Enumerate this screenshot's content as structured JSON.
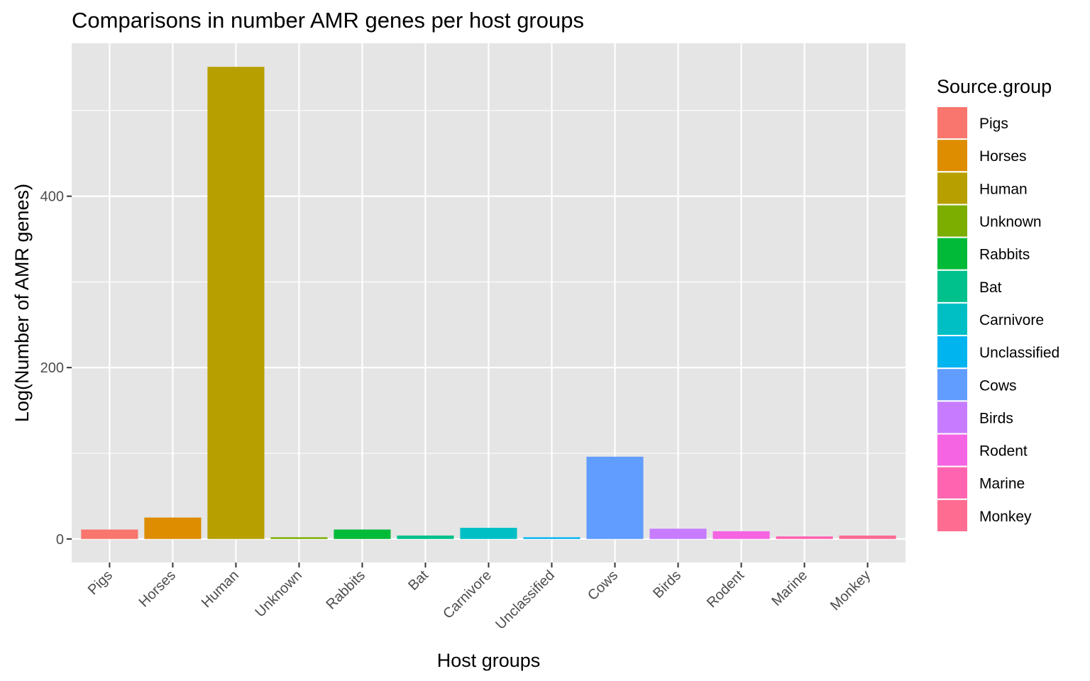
{
  "chart_data": {
    "type": "bar",
    "title": "Comparisons in number AMR genes per host groups",
    "xlabel": "Host groups",
    "ylabel": "Log(Number of AMR genes)",
    "categories": [
      "Pigs",
      "Horses",
      "Human",
      "Unknown",
      "Rabbits",
      "Bat",
      "Carnivore",
      "Unclassified",
      "Cows",
      "Birds",
      "Rodent",
      "Marine",
      "Monkey"
    ],
    "values": [
      11,
      25,
      551,
      2,
      11,
      4,
      13,
      2,
      96,
      12,
      9,
      3,
      4
    ],
    "colors": [
      "#F8766D",
      "#DE8C00",
      "#B79F00",
      "#7CAE00",
      "#00BA38",
      "#00C08B",
      "#00BFC4",
      "#00B4F0",
      "#619CFF",
      "#C77CFF",
      "#F564E3",
      "#FF64B0",
      "#FF6C91"
    ],
    "yticks": [
      0,
      200,
      400
    ],
    "ylim": [
      -27.5,
      578.5
    ],
    "grid": true,
    "legend": {
      "title": "Source.group",
      "position": "right"
    }
  }
}
